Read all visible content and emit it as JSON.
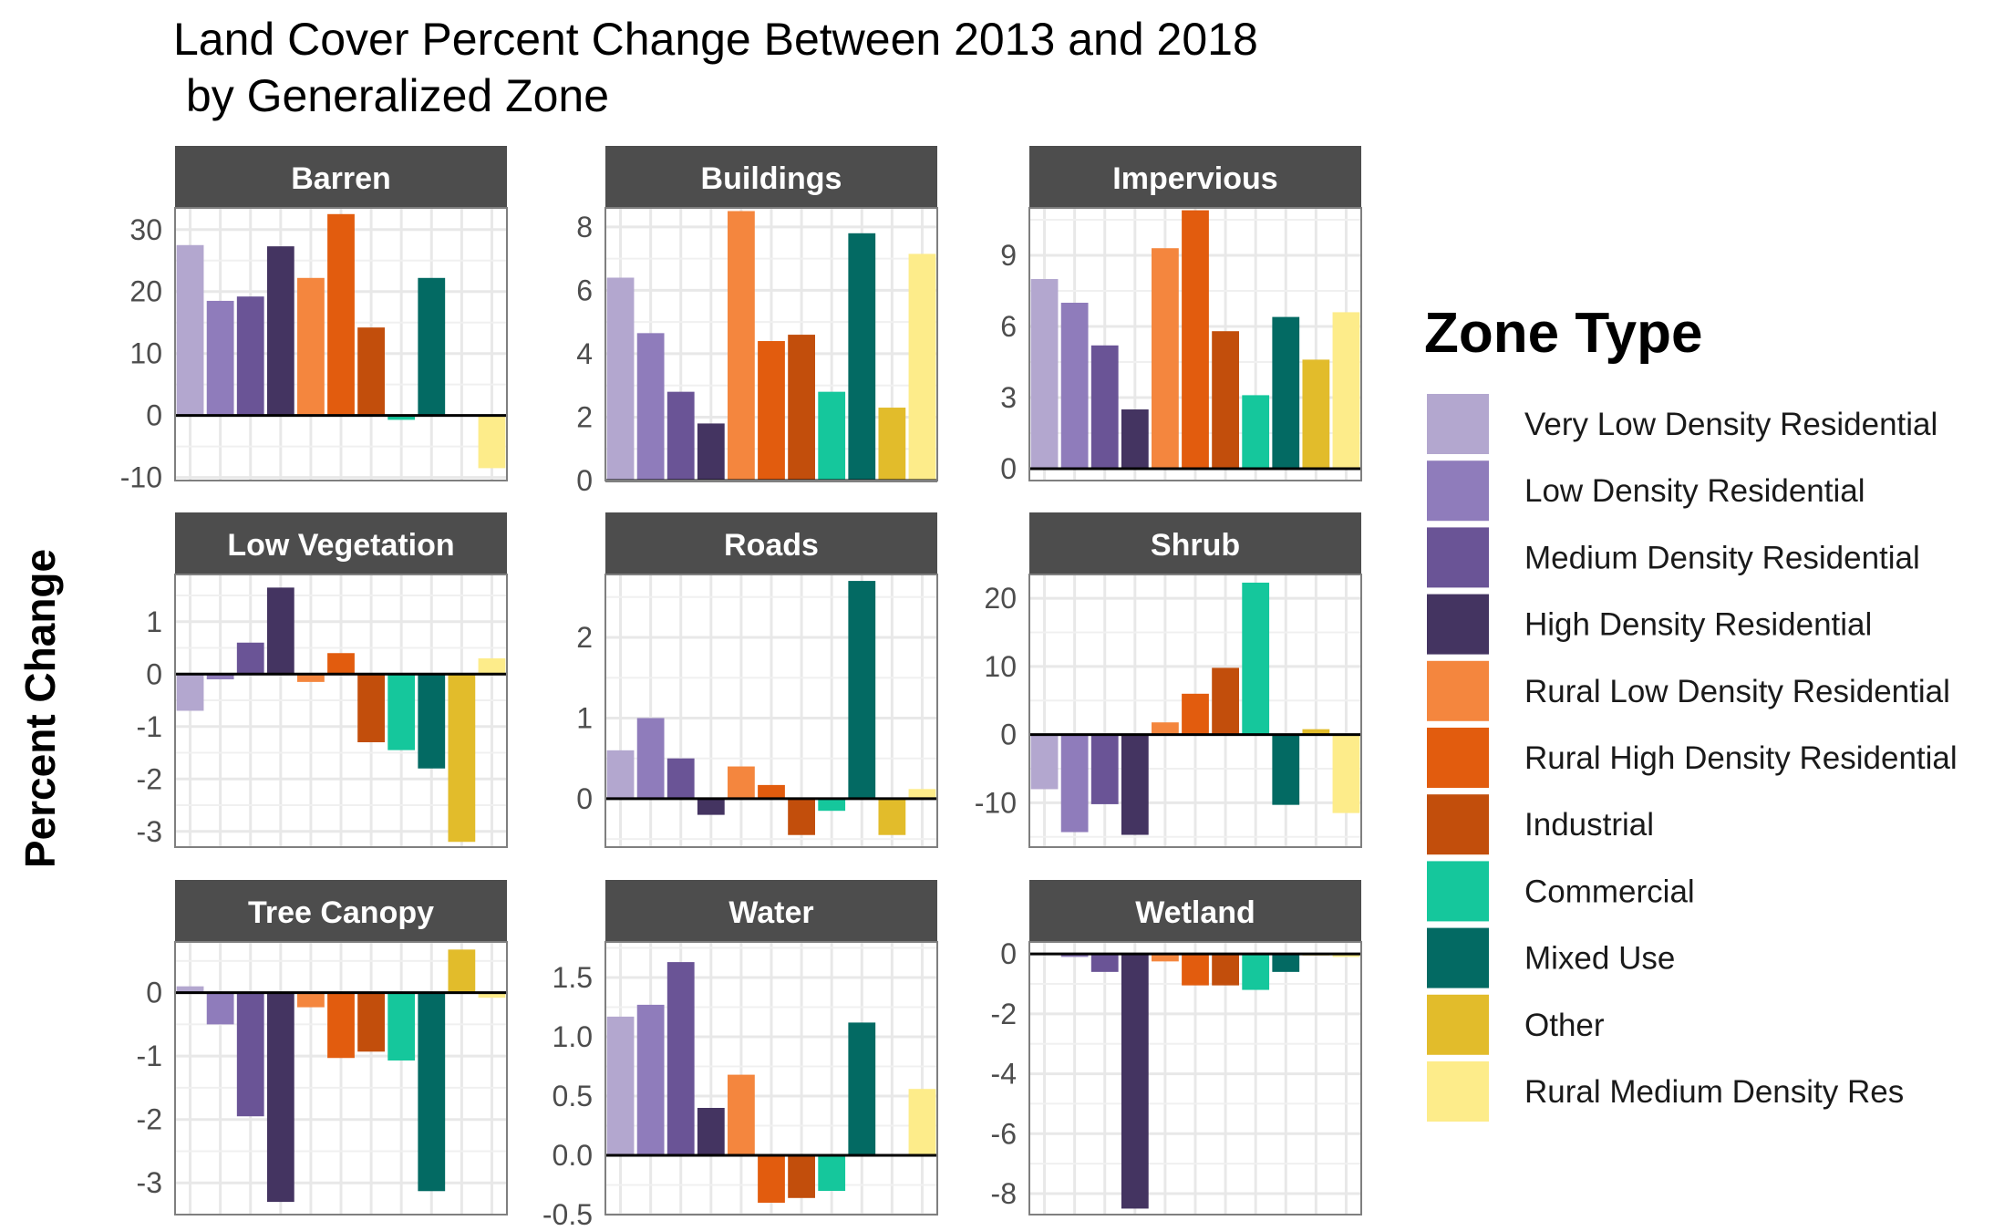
{
  "chart_data": {
    "type": "bar",
    "title_lines": [
      "Land Cover Percent Change Between 2013 and 2018",
      " by Generalized Zone"
    ],
    "ylabel": "Percent Change",
    "xlabel": "",
    "grid": true,
    "legend": {
      "title": "Zone Type",
      "placement": "right",
      "entries": [
        {
          "name": "Very Low Density Residential",
          "color": "#B3A7CF"
        },
        {
          "name": "Low Density Residential",
          "color": "#8F7CBB"
        },
        {
          "name": "Medium Density Residential",
          "color": "#6A5496"
        },
        {
          "name": "High Density Residential",
          "color": "#443461"
        },
        {
          "name": "Rural Low Density Residential",
          "color": "#F4863E"
        },
        {
          "name": "Rural High Density Residential",
          "color": "#E25C0E"
        },
        {
          "name": "Industrial",
          "color": "#C24E0C"
        },
        {
          "name": "Commercial",
          "color": "#15C79C"
        },
        {
          "name": "Mixed Use",
          "color": "#036A63"
        },
        {
          "name": "Other",
          "color": "#E2BC2B"
        },
        {
          "name": "Rural Medium Density Res",
          "color": "#FDEC8A"
        }
      ]
    },
    "panels": [
      {
        "name": "Barren",
        "ylim": [
          -10.5,
          33.5
        ],
        "ticks": [
          30,
          20,
          10,
          0,
          -10
        ],
        "values": [
          27.5,
          18.5,
          19.2,
          27.3,
          22.2,
          32.5,
          14.2,
          -0.7,
          22.2,
          0,
          -8.5
        ]
      },
      {
        "name": "Buildings",
        "ylim": [
          0,
          8.6
        ],
        "ticks": [
          8,
          6,
          4,
          2,
          0
        ],
        "values": [
          6.4,
          4.65,
          2.8,
          1.8,
          8.5,
          4.4,
          4.6,
          2.8,
          7.8,
          2.3,
          7.15
        ]
      },
      {
        "name": "Impervious",
        "ylim": [
          -0.5,
          11.0
        ],
        "ticks": [
          9,
          6,
          3,
          0
        ],
        "values": [
          8.0,
          7.0,
          5.2,
          2.5,
          9.3,
          10.9,
          5.8,
          3.1,
          6.4,
          4.6,
          6.6
        ]
      },
      {
        "name": "Low Vegetation",
        "ylim": [
          -3.3,
          1.9
        ],
        "ticks": [
          1,
          0,
          -1,
          -2,
          -3
        ],
        "values": [
          -0.7,
          -0.1,
          0.6,
          1.65,
          -0.15,
          0.4,
          -1.3,
          -1.45,
          -1.8,
          -3.2,
          0.3
        ]
      },
      {
        "name": "Roads",
        "ylim": [
          -0.6,
          2.78
        ],
        "ticks": [
          2,
          1,
          0
        ],
        "values": [
          0.6,
          1.0,
          0.5,
          -0.2,
          0.4,
          0.17,
          -0.45,
          -0.15,
          2.7,
          -0.45,
          0.12
        ]
      },
      {
        "name": "Shrub",
        "ylim": [
          -16.5,
          23.5
        ],
        "ticks": [
          20,
          10,
          0,
          -10
        ],
        "values": [
          -8.0,
          -14.3,
          -10.2,
          -14.7,
          1.8,
          6.0,
          9.8,
          22.3,
          -10.3,
          0.8,
          -11.5
        ]
      },
      {
        "name": "Tree Canopy",
        "ylim": [
          -3.5,
          0.8
        ],
        "ticks": [
          0,
          -1,
          -2,
          -3
        ],
        "values": [
          0.1,
          -0.5,
          -1.95,
          -3.3,
          -0.23,
          -1.03,
          -0.93,
          -1.07,
          -3.13,
          0.68,
          -0.08
        ]
      },
      {
        "name": "Water",
        "ylim": [
          -0.5,
          1.8
        ],
        "ticks": [
          "1.5",
          "1.0",
          "0.5",
          "0.0",
          "-0.5"
        ],
        "values": [
          1.17,
          1.27,
          1.63,
          0.4,
          0.68,
          -0.4,
          -0.36,
          -0.3,
          1.12,
          0,
          0.56
        ]
      },
      {
        "name": "Wetland",
        "ylim": [
          -8.7,
          0.4
        ],
        "ticks": [
          0,
          -2,
          -4,
          -6,
          -8
        ],
        "values": [
          0,
          -0.1,
          -0.6,
          -8.5,
          -0.25,
          -1.05,
          -1.05,
          -1.2,
          -0.6,
          -0.05,
          -0.1
        ]
      }
    ]
  }
}
